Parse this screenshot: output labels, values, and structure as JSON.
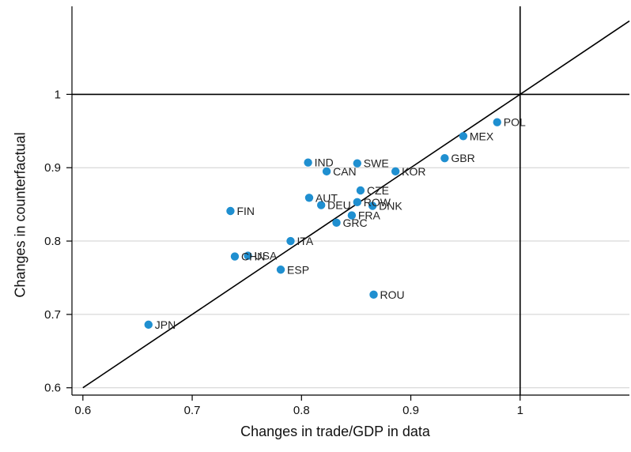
{
  "chart_data": {
    "type": "scatter",
    "xlabel": "Changes in trade/GDP in data",
    "ylabel": "Changes in counterfactual",
    "xlim": [
      0.59,
      1.1
    ],
    "ylim": [
      0.59,
      1.12
    ],
    "xticks": [
      0.6,
      0.7,
      0.8,
      0.9,
      1
    ],
    "yticks": [
      0.6,
      0.7,
      0.8,
      0.9,
      1
    ],
    "x_tick_labels": [
      "0.6",
      "0.7",
      "0.8",
      "0.9",
      "1"
    ],
    "y_tick_labels": [
      "0.6",
      "0.7",
      "0.8",
      "0.9",
      "1"
    ],
    "grid": "horizontal",
    "reference_lines": [
      {
        "kind": "diagonal",
        "from": [
          0.6,
          0.6
        ],
        "to": [
          1.1,
          1.1
        ]
      },
      {
        "kind": "vertical",
        "x": 1
      },
      {
        "kind": "horizontal",
        "y": 1
      }
    ],
    "marker_color": "#1f8fd0",
    "points": [
      {
        "label": "POL",
        "x": 0.979,
        "y": 0.962
      },
      {
        "label": "MEX",
        "x": 0.948,
        "y": 0.943
      },
      {
        "label": "GBR",
        "x": 0.931,
        "y": 0.913
      },
      {
        "label": "IND",
        "x": 0.806,
        "y": 0.907
      },
      {
        "label": "SWE",
        "x": 0.851,
        "y": 0.906
      },
      {
        "label": "CAN",
        "x": 0.823,
        "y": 0.895
      },
      {
        "label": "KOR",
        "x": 0.886,
        "y": 0.895
      },
      {
        "label": "CZE",
        "x": 0.854,
        "y": 0.869
      },
      {
        "label": "AUT",
        "x": 0.807,
        "y": 0.859
      },
      {
        "label": "ROW",
        "x": 0.851,
        "y": 0.853
      },
      {
        "label": "DEU",
        "x": 0.818,
        "y": 0.849
      },
      {
        "label": "DNK",
        "x": 0.865,
        "y": 0.848
      },
      {
        "label": "FIN",
        "x": 0.735,
        "y": 0.841
      },
      {
        "label": "FRA",
        "x": 0.846,
        "y": 0.835
      },
      {
        "label": "GRC",
        "x": 0.832,
        "y": 0.825
      },
      {
        "label": "ITA",
        "x": 0.79,
        "y": 0.8
      },
      {
        "label": "CHN",
        "x": 0.739,
        "y": 0.779
      },
      {
        "label": "USA",
        "x": 0.751,
        "y": 0.78
      },
      {
        "label": "ESP",
        "x": 0.781,
        "y": 0.761
      },
      {
        "label": "ROU",
        "x": 0.866,
        "y": 0.727
      },
      {
        "label": "JPN",
        "x": 0.66,
        "y": 0.686
      }
    ]
  }
}
